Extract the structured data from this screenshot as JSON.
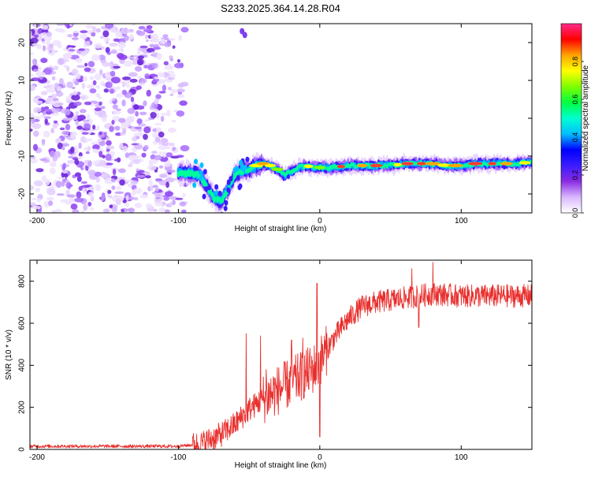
{
  "title": "S233.2025.364.14.28.R04",
  "chart_data": [
    {
      "type": "heatmap",
      "name": "spectrogram",
      "xlabel": "Height of straight line (km)",
      "ylabel": "Frequency (Hz)",
      "xlim": [
        -205,
        150
      ],
      "ylim": [
        -25,
        25
      ],
      "xticks": [
        -200,
        -100,
        0,
        100
      ],
      "yticks": [
        -20,
        -10,
        0,
        10,
        20
      ],
      "colorbar": {
        "label": "Normalized spectral amplitude",
        "range": [
          0,
          1
        ],
        "ticks": [
          0.0,
          0.2,
          0.4,
          0.6,
          0.8
        ],
        "colors": [
          "#ffffff",
          "#d9b8ff",
          "#8a2be2",
          "#3b1cff",
          "#0000ff",
          "#00bfff",
          "#00ffd0",
          "#00ff40",
          "#7fff00",
          "#ffff00",
          "#ffa500",
          "#ff0000",
          "#ff2a8a"
        ]
      },
      "ridge": {
        "x": [
          -100,
          -92,
          -85,
          -80,
          -75,
          -70,
          -65,
          -60,
          -55,
          -50,
          -45,
          -40,
          -35,
          -30,
          -25,
          -20,
          -15,
          -10,
          -5,
          0,
          10,
          20,
          30,
          40,
          50,
          60,
          70,
          80,
          90,
          100,
          110,
          120,
          130,
          140,
          150
        ],
        "y": [
          -14.5,
          -14.5,
          -15,
          -18,
          -21,
          -22,
          -19,
          -15,
          -14,
          -13.5,
          -12.5,
          -12,
          -12.5,
          -13.5,
          -15,
          -14,
          -13,
          -12.5,
          -13,
          -13,
          -13,
          -12.5,
          -12.5,
          -12.5,
          -12.5,
          -12,
          -12,
          -12,
          -12.5,
          -12.5,
          -12,
          -12,
          -12,
          -12,
          -11.5
        ]
      },
      "noise_region_x": [
        -205,
        -95
      ]
    },
    {
      "type": "line",
      "name": "snr",
      "xlabel": "Height of straight line (km)",
      "ylabel": "SNR (10 * v/v)",
      "xlim": [
        -205,
        150
      ],
      "ylim": [
        0,
        900
      ],
      "xticks": [
        -200,
        -100,
        0,
        100
      ],
      "yticks": [
        0,
        200,
        400,
        600,
        800
      ],
      "color": "#e8302e",
      "trend": {
        "x": [
          -205,
          -100,
          -85,
          -70,
          -60,
          -50,
          -40,
          -30,
          -20,
          -10,
          -5,
          0,
          10,
          20,
          30,
          40,
          60,
          80,
          100,
          120,
          150
        ],
        "y": [
          15,
          15,
          25,
          70,
          120,
          190,
          240,
          280,
          320,
          360,
          380,
          420,
          530,
          620,
          680,
          700,
          720,
          740,
          730,
          730,
          730
        ]
      },
      "spikes": [
        {
          "x": -52,
          "y": 550
        },
        {
          "x": -42,
          "y": 540
        },
        {
          "x": -38,
          "y": 380
        },
        {
          "x": -20,
          "y": 520
        },
        {
          "x": -12,
          "y": 530
        },
        {
          "x": -2,
          "y": 790
        },
        {
          "x": 0,
          "y": 60
        },
        {
          "x": 65,
          "y": 860
        },
        {
          "x": 70,
          "y": 580
        },
        {
          "x": 80,
          "y": 890
        }
      ]
    }
  ]
}
